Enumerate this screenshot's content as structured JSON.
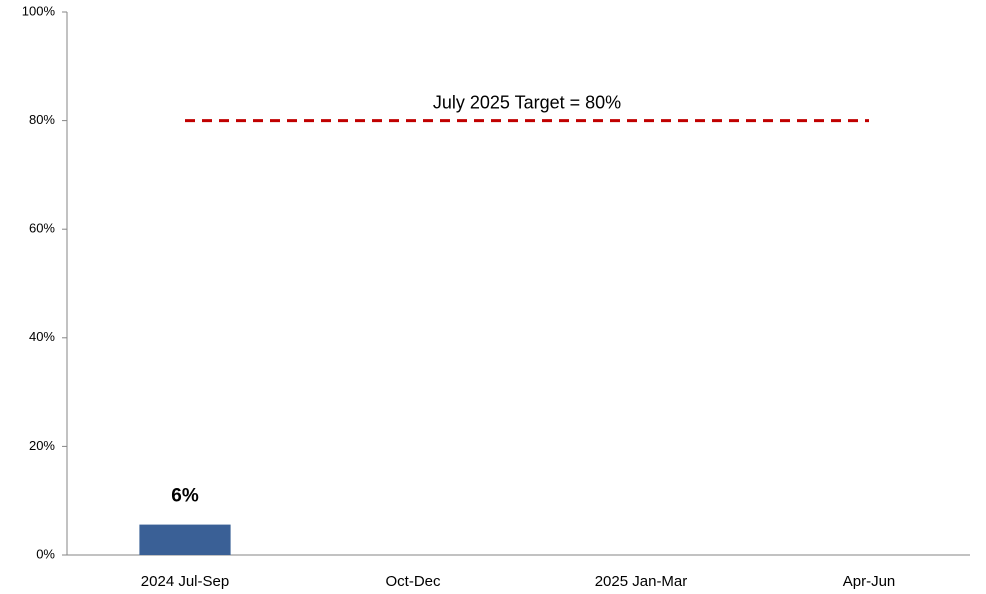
{
  "chart_data": {
    "type": "bar",
    "categories": [
      "2024 Jul-Sep",
      "Oct-Dec",
      "2025 Jan-Mar",
      "Apr-Jun"
    ],
    "values": [
      5.6,
      null,
      null,
      null
    ],
    "value_labels": [
      "6%",
      null,
      null,
      null
    ],
    "color": "#3a6096",
    "ylim": [
      0,
      100
    ],
    "yticks": [
      {
        "value": 0,
        "label": "0%"
      },
      {
        "value": 20,
        "label": "20%"
      },
      {
        "value": 40,
        "label": "40%"
      },
      {
        "value": 60,
        "label": "60%"
      },
      {
        "value": 80,
        "label": "80%"
      },
      {
        "value": 100,
        "label": "100%"
      }
    ],
    "grid": false,
    "target": {
      "value": 80,
      "label": "July 2025 Target = 80%",
      "color": "#c00000"
    }
  }
}
